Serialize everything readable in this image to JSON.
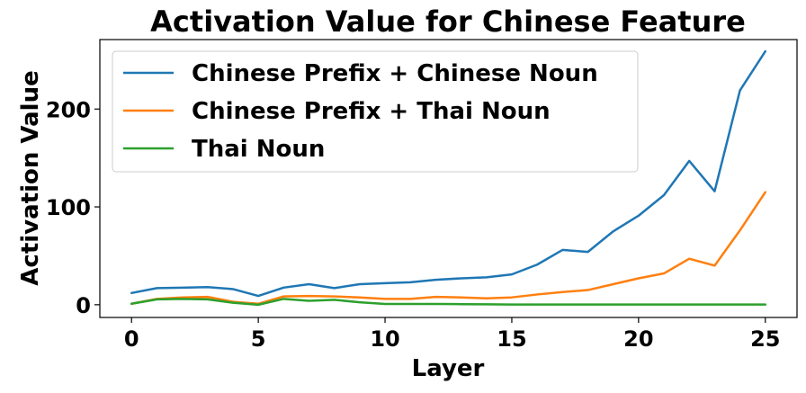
{
  "chart_data": {
    "type": "line",
    "title": "Activation Value for Chinese Feature",
    "xlabel": "Layer",
    "ylabel": "Activation Value",
    "xlim": [
      -1.25,
      26.25
    ],
    "ylim": [
      -13,
      271
    ],
    "xticks": [
      0,
      5,
      10,
      15,
      20,
      25
    ],
    "yticks": [
      0,
      100,
      200
    ],
    "grid": false,
    "legend_position": "top-left",
    "x": [
      0,
      1,
      2,
      3,
      4,
      5,
      6,
      7,
      8,
      9,
      10,
      11,
      12,
      13,
      14,
      15,
      16,
      17,
      18,
      19,
      20,
      21,
      22,
      23,
      24,
      25
    ],
    "series": [
      {
        "name": "Chinese Prefix + Chinese Noun",
        "color": "#1f77b4",
        "values": [
          12,
          17,
          17.5,
          18,
          16,
          9,
          17.5,
          21,
          17,
          21,
          22,
          23,
          25.5,
          27,
          28,
          31,
          41,
          56,
          54,
          75,
          91,
          112,
          147,
          116,
          219,
          259
        ]
      },
      {
        "name": "Chinese Prefix + Thai Noun",
        "color": "#ff7f0e",
        "values": [
          1,
          6,
          7.5,
          8,
          3,
          1,
          8.5,
          9,
          8.5,
          7.5,
          6,
          6,
          8,
          7.5,
          6.5,
          7.5,
          10.5,
          13,
          15,
          21,
          27,
          32,
          47,
          40,
          76,
          115
        ]
      },
      {
        "name": "Thai Noun",
        "color": "#2ca02c",
        "values": [
          1,
          5.5,
          6,
          5.5,
          2,
          0,
          6,
          4,
          5,
          2.5,
          0.8,
          0.8,
          0.8,
          0.6,
          0.4,
          0.2,
          0.2,
          0.2,
          0.2,
          0.2,
          0.2,
          0.2,
          0.2,
          0.2,
          0.2,
          0.2
        ]
      }
    ]
  }
}
